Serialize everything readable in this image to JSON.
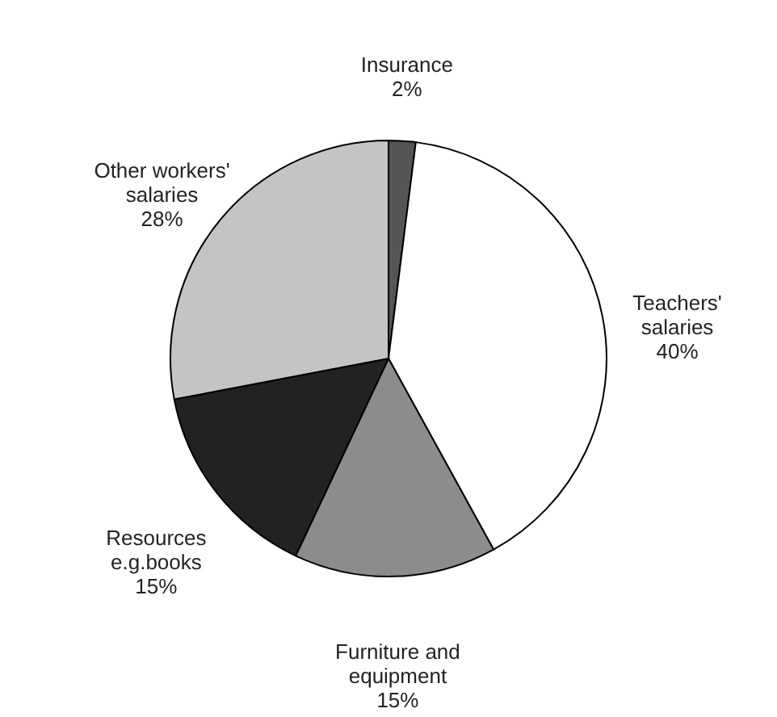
{
  "chart_data": {
    "type": "pie",
    "categories": [
      "Insurance",
      "Teachers'\nsalaries",
      "Furniture and\nequipment",
      "Resources\ne.g.books",
      "Other workers'\nsalaries"
    ],
    "values": [
      2,
      40,
      15,
      15,
      28
    ],
    "value_labels": [
      "2%",
      "40%",
      "15%",
      "15%",
      "28%"
    ],
    "colors": [
      "#555555",
      "#ffffff",
      "#8c8c8c",
      "#222222",
      "#c4c4c4"
    ]
  }
}
